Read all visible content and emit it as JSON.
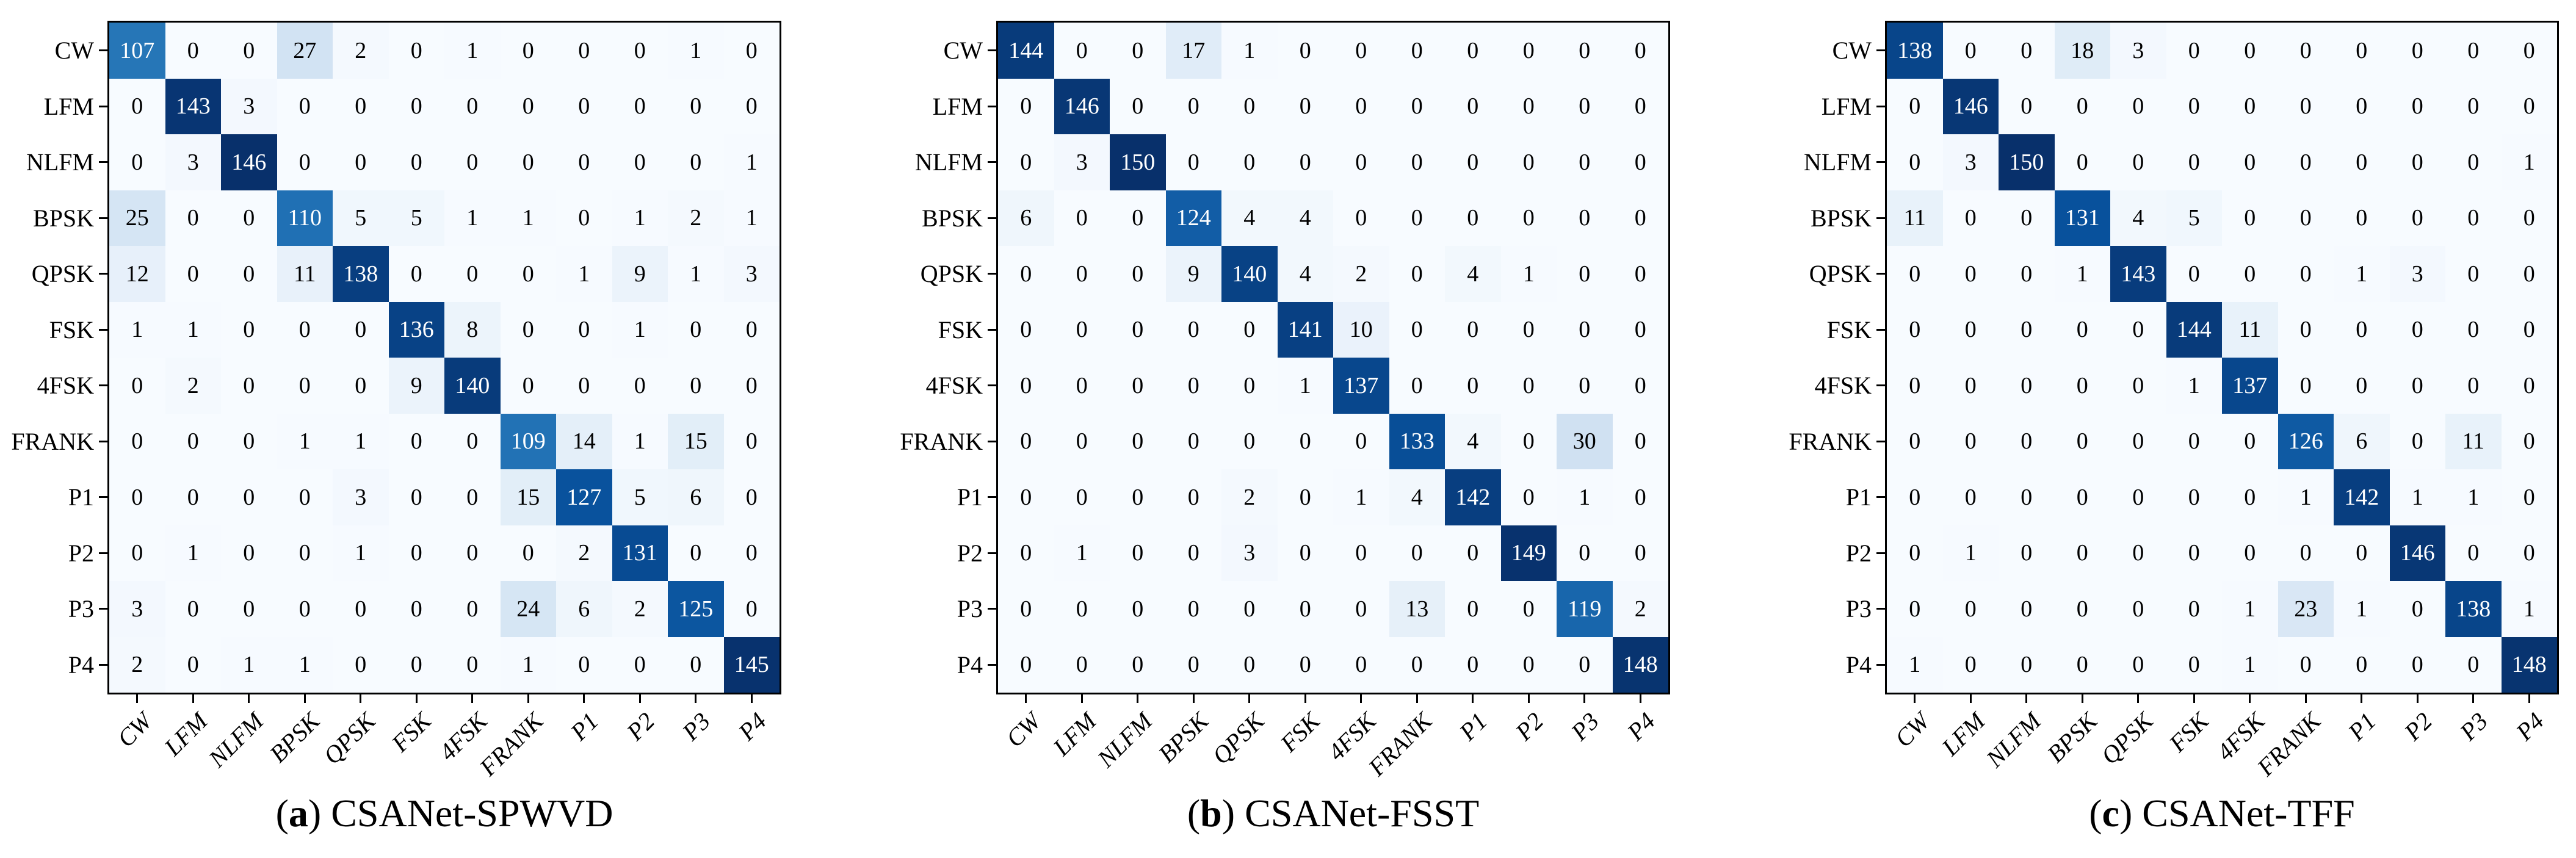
{
  "figure": {
    "classes": [
      "CW",
      "LFM",
      "NLFM",
      "BPSK",
      "QPSK",
      "FSK",
      "4FSK",
      "FRANK",
      "P1",
      "P2",
      "P3",
      "P4"
    ],
    "colors": {
      "background": "#ffffff",
      "frame": "#000000",
      "text_dark": "#000000",
      "text_light": "#ffffff",
      "colormap_name": "Blues",
      "colormap_stops": [
        "#f7fbff",
        "#deebf7",
        "#c6dbef",
        "#9ecae1",
        "#6baed6",
        "#4292c6",
        "#2171b5",
        "#08519c",
        "#08306b"
      ]
    }
  },
  "chart_data": [
    {
      "type": "heatmap",
      "title": "(a) CSANet-SPWVD",
      "caption": {
        "open": "(",
        "letter": "a",
        "close": ")",
        "name": "CSANet-SPWVD"
      },
      "x_categories": [
        "CW",
        "LFM",
        "NLFM",
        "BPSK",
        "QPSK",
        "FSK",
        "4FSK",
        "FRANK",
        "P1",
        "P2",
        "P3",
        "P4"
      ],
      "y_categories": [
        "CW",
        "LFM",
        "NLFM",
        "BPSK",
        "QPSK",
        "FSK",
        "4FSK",
        "FRANK",
        "P1",
        "P2",
        "P3",
        "P4"
      ],
      "vmin": 0,
      "colormap": "Blues",
      "values": [
        [
          107,
          0,
          0,
          27,
          2,
          0,
          1,
          0,
          0,
          0,
          1,
          0
        ],
        [
          0,
          143,
          3,
          0,
          0,
          0,
          0,
          0,
          0,
          0,
          0,
          0
        ],
        [
          0,
          3,
          146,
          0,
          0,
          0,
          0,
          0,
          0,
          0,
          0,
          1
        ],
        [
          25,
          0,
          0,
          110,
          5,
          5,
          1,
          1,
          0,
          1,
          2,
          1
        ],
        [
          12,
          0,
          0,
          11,
          138,
          0,
          0,
          0,
          1,
          9,
          1,
          3
        ],
        [
          1,
          1,
          0,
          0,
          0,
          136,
          8,
          0,
          0,
          1,
          0,
          0
        ],
        [
          0,
          2,
          0,
          0,
          0,
          9,
          140,
          0,
          0,
          0,
          0,
          0
        ],
        [
          0,
          0,
          0,
          1,
          1,
          0,
          0,
          109,
          14,
          1,
          15,
          0
        ],
        [
          0,
          0,
          0,
          0,
          3,
          0,
          0,
          15,
          127,
          5,
          6,
          0
        ],
        [
          0,
          1,
          0,
          0,
          1,
          0,
          0,
          0,
          2,
          131,
          0,
          0
        ],
        [
          3,
          0,
          0,
          0,
          0,
          0,
          0,
          24,
          6,
          2,
          125,
          0
        ],
        [
          2,
          0,
          1,
          1,
          0,
          0,
          0,
          1,
          0,
          0,
          0,
          145
        ]
      ]
    },
    {
      "type": "heatmap",
      "title": "(b) CSANet-FSST",
      "caption": {
        "open": "(",
        "letter": "b",
        "close": ")",
        "name": "CSANet-FSST"
      },
      "x_categories": [
        "CW",
        "LFM",
        "NLFM",
        "BPSK",
        "QPSK",
        "FSK",
        "4FSK",
        "FRANK",
        "P1",
        "P2",
        "P3",
        "P4"
      ],
      "y_categories": [
        "CW",
        "LFM",
        "NLFM",
        "BPSK",
        "QPSK",
        "FSK",
        "4FSK",
        "FRANK",
        "P1",
        "P2",
        "P3",
        "P4"
      ],
      "vmin": 0,
      "colormap": "Blues",
      "values": [
        [
          144,
          0,
          0,
          17,
          1,
          0,
          0,
          0,
          0,
          0,
          0,
          0
        ],
        [
          0,
          146,
          0,
          0,
          0,
          0,
          0,
          0,
          0,
          0,
          0,
          0
        ],
        [
          0,
          3,
          150,
          0,
          0,
          0,
          0,
          0,
          0,
          0,
          0,
          0
        ],
        [
          6,
          0,
          0,
          124,
          4,
          4,
          0,
          0,
          0,
          0,
          0,
          0
        ],
        [
          0,
          0,
          0,
          9,
          140,
          4,
          2,
          0,
          4,
          1,
          0,
          0
        ],
        [
          0,
          0,
          0,
          0,
          0,
          141,
          10,
          0,
          0,
          0,
          0,
          0
        ],
        [
          0,
          0,
          0,
          0,
          0,
          1,
          137,
          0,
          0,
          0,
          0,
          0
        ],
        [
          0,
          0,
          0,
          0,
          0,
          0,
          0,
          133,
          4,
          0,
          30,
          0
        ],
        [
          0,
          0,
          0,
          0,
          2,
          0,
          1,
          4,
          142,
          0,
          1,
          0
        ],
        [
          0,
          1,
          0,
          0,
          3,
          0,
          0,
          0,
          0,
          149,
          0,
          0
        ],
        [
          0,
          0,
          0,
          0,
          0,
          0,
          0,
          13,
          0,
          0,
          119,
          2
        ],
        [
          0,
          0,
          0,
          0,
          0,
          0,
          0,
          0,
          0,
          0,
          0,
          148
        ]
      ]
    },
    {
      "type": "heatmap",
      "title": "(c) CSANet-TFF",
      "caption": {
        "open": "(",
        "letter": "c",
        "close": ")",
        "name": "CSANet-TFF"
      },
      "x_categories": [
        "CW",
        "LFM",
        "NLFM",
        "BPSK",
        "QPSK",
        "FSK",
        "4FSK",
        "FRANK",
        "P1",
        "P2",
        "P3",
        "P4"
      ],
      "y_categories": [
        "CW",
        "LFM",
        "NLFM",
        "BPSK",
        "QPSK",
        "FSK",
        "4FSK",
        "FRANK",
        "P1",
        "P2",
        "P3",
        "P4"
      ],
      "vmin": 0,
      "colormap": "Blues",
      "values": [
        [
          138,
          0,
          0,
          18,
          3,
          0,
          0,
          0,
          0,
          0,
          0,
          0
        ],
        [
          0,
          146,
          0,
          0,
          0,
          0,
          0,
          0,
          0,
          0,
          0,
          0
        ],
        [
          0,
          3,
          150,
          0,
          0,
          0,
          0,
          0,
          0,
          0,
          0,
          1
        ],
        [
          11,
          0,
          0,
          131,
          4,
          5,
          0,
          0,
          0,
          0,
          0,
          0
        ],
        [
          0,
          0,
          0,
          1,
          143,
          0,
          0,
          0,
          1,
          3,
          0,
          0
        ],
        [
          0,
          0,
          0,
          0,
          0,
          144,
          11,
          0,
          0,
          0,
          0,
          0
        ],
        [
          0,
          0,
          0,
          0,
          0,
          1,
          137,
          0,
          0,
          0,
          0,
          0
        ],
        [
          0,
          0,
          0,
          0,
          0,
          0,
          0,
          126,
          6,
          0,
          11,
          0
        ],
        [
          0,
          0,
          0,
          0,
          0,
          0,
          0,
          1,
          142,
          1,
          1,
          0
        ],
        [
          0,
          1,
          0,
          0,
          0,
          0,
          0,
          0,
          0,
          146,
          0,
          0
        ],
        [
          0,
          0,
          0,
          0,
          0,
          0,
          1,
          23,
          1,
          0,
          138,
          1
        ],
        [
          1,
          0,
          0,
          0,
          0,
          0,
          1,
          0,
          0,
          0,
          0,
          148
        ]
      ]
    }
  ]
}
